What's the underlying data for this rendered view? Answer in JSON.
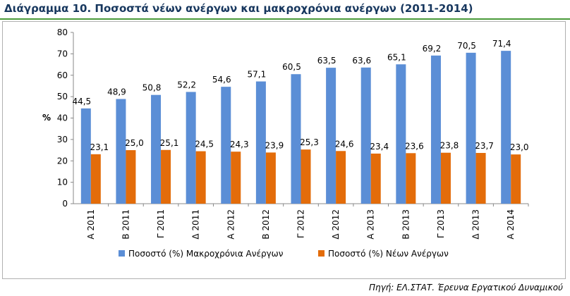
{
  "page": {
    "title": "Διάγραμμα 10. Ποσοστά νέων ανέργων και μακροχρόνια ανέργων (2011-2014)",
    "source": "Πηγή: ΕΛ.ΣΤΑΤ. Έρευνα Εργατικού Δυναμικού"
  },
  "colors": {
    "title": "#17375e",
    "series_long_term": "#5b8ed6",
    "series_youth": "#e36c0a"
  },
  "chart_data": {
    "type": "bar",
    "title": "",
    "xlabel": "",
    "ylabel": "%",
    "ylim": [
      0,
      80
    ],
    "yticks": [
      0,
      10,
      20,
      30,
      40,
      50,
      60,
      70,
      80
    ],
    "grid": false,
    "legend_position": "bottom",
    "categories": [
      "Α 2011",
      "Β 2011",
      "Γ 2011",
      "Δ 2011",
      "Α 2012",
      "Β 2012",
      "Γ 2012",
      "Δ 2012",
      "Α 2013",
      "Β 2013",
      "Γ 2013",
      "Δ 2013",
      "Α 2014"
    ],
    "series": [
      {
        "name": "Ποσοστό (%) Μακροχρόνια Ανέργων",
        "values": [
          44.5,
          48.9,
          50.8,
          52.2,
          54.6,
          57.1,
          60.5,
          63.5,
          63.6,
          65.1,
          69.2,
          70.5,
          71.4
        ],
        "labels": [
          "44,5",
          "48,9",
          "50,8",
          "52,2",
          "54,6",
          "57,1",
          "60,5",
          "63,5",
          "63,6",
          "65,1",
          "69,2",
          "70,5",
          "71,4"
        ]
      },
      {
        "name": "Ποσοστό (%) Νέων Ανέργων",
        "values": [
          23.1,
          25.0,
          25.1,
          24.5,
          24.3,
          23.9,
          25.3,
          24.6,
          23.4,
          23.6,
          23.8,
          23.7,
          23.0
        ],
        "labels": [
          "23,1",
          "25,0",
          "25,1",
          "24,5",
          "24,3",
          "23,9",
          "25,3",
          "24,6",
          "23,4",
          "23,6",
          "23,8",
          "23,7",
          "23,0"
        ]
      }
    ]
  }
}
